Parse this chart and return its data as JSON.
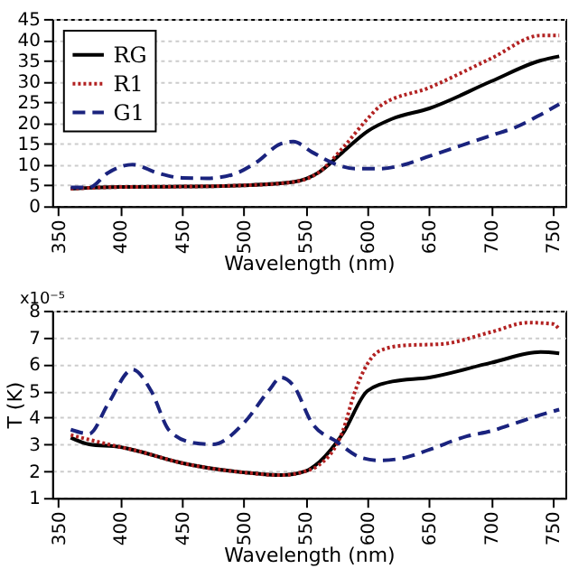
{
  "chart_data": [
    {
      "type": "line",
      "xlabel": "Wavelength (nm)",
      "xlim": [
        345,
        760
      ],
      "xticks": [
        350,
        400,
        450,
        500,
        550,
        600,
        650,
        700,
        750
      ],
      "ylim": [
        0,
        45
      ],
      "yticks": [
        0,
        5,
        10,
        15,
        20,
        25,
        30,
        35,
        40,
        45
      ],
      "grid": "y",
      "legend": "top left",
      "series": [
        {
          "name": "RG",
          "color": "#000000",
          "line_style": "solid",
          "x": [
            360,
            400,
            450,
            500,
            540,
            560,
            580,
            600,
            620,
            650,
            700,
            740,
            755
          ],
          "values": [
            4.2,
            4.6,
            4.7,
            5,
            5.8,
            8,
            13,
            18,
            21,
            23.5,
            30,
            35,
            36
          ]
        },
        {
          "name": "R1",
          "color": "#b22222",
          "line_style": "dotted",
          "x": [
            360,
            400,
            450,
            500,
            540,
            560,
            580,
            600,
            610,
            650,
            700,
            740,
            755
          ],
          "values": [
            4.2,
            4.6,
            4.7,
            5,
            5.8,
            8,
            14,
            21,
            24,
            28.5,
            35.5,
            41,
            41
          ]
        },
        {
          "name": "G1",
          "color": "#1a237e",
          "line_style": "dashed",
          "x": [
            360,
            375,
            390,
            410,
            430,
            450,
            470,
            490,
            510,
            530,
            540,
            555,
            575,
            590,
            610,
            630,
            650,
            680,
            700,
            720,
            740,
            755
          ],
          "values": [
            4.5,
            4.5,
            8,
            10,
            8,
            6.8,
            6.7,
            7.5,
            10.5,
            15,
            15.5,
            13,
            10,
            9,
            9,
            10,
            12,
            15,
            17,
            19,
            22,
            24.5
          ]
        }
      ]
    },
    {
      "type": "line",
      "xlabel": "Wavelength (nm)",
      "ylabel": "T (K)",
      "annotations": [
        "x10⁻⁵"
      ],
      "xlim": [
        345,
        760
      ],
      "xticks": [
        350,
        400,
        450,
        500,
        550,
        600,
        650,
        700,
        750
      ],
      "ylim": [
        1,
        8
      ],
      "yticks": [
        1,
        2,
        3,
        4,
        5,
        6,
        7,
        8
      ],
      "grid": "y",
      "legend": false,
      "series": [
        {
          "color": "#000000",
          "line_style": "solid",
          "x": [
            360,
            375,
            400,
            410,
            450,
            500,
            530,
            550,
            560,
            580,
            600,
            620,
            650,
            700,
            740,
            755
          ],
          "values": [
            3.25,
            3.0,
            2.9,
            2.8,
            2.3,
            1.95,
            1.85,
            2.0,
            2.3,
            3.4,
            5.0,
            5.35,
            5.5,
            6.05,
            6.45,
            6.4
          ]
        },
        {
          "color": "#b22222",
          "line_style": "dotted",
          "x": [
            360,
            400,
            410,
            450,
            500,
            530,
            550,
            560,
            580,
            590,
            610,
            630,
            660,
            700,
            730,
            750,
            755
          ],
          "values": [
            3.35,
            2.9,
            2.8,
            2.3,
            1.95,
            1.85,
            2.0,
            2.2,
            3.5,
            5,
            6.5,
            6.7,
            6.75,
            7.2,
            7.55,
            7.5,
            7.3
          ]
        },
        {
          "color": "#1a237e",
          "line_style": "dashed",
          "x": [
            360,
            375,
            390,
            410,
            425,
            440,
            460,
            475,
            500,
            520,
            530,
            540,
            555,
            575,
            595,
            610,
            630,
            650,
            680,
            700,
            720,
            740,
            755
          ],
          "values": [
            3.55,
            3.4,
            4.5,
            5.8,
            5,
            3.5,
            3.05,
            3.0,
            3.8,
            5,
            5.5,
            5.2,
            3.8,
            3.1,
            2.5,
            2.4,
            2.5,
            2.8,
            3.3,
            3.5,
            3.8,
            4.1,
            4.3
          ]
        }
      ]
    }
  ]
}
